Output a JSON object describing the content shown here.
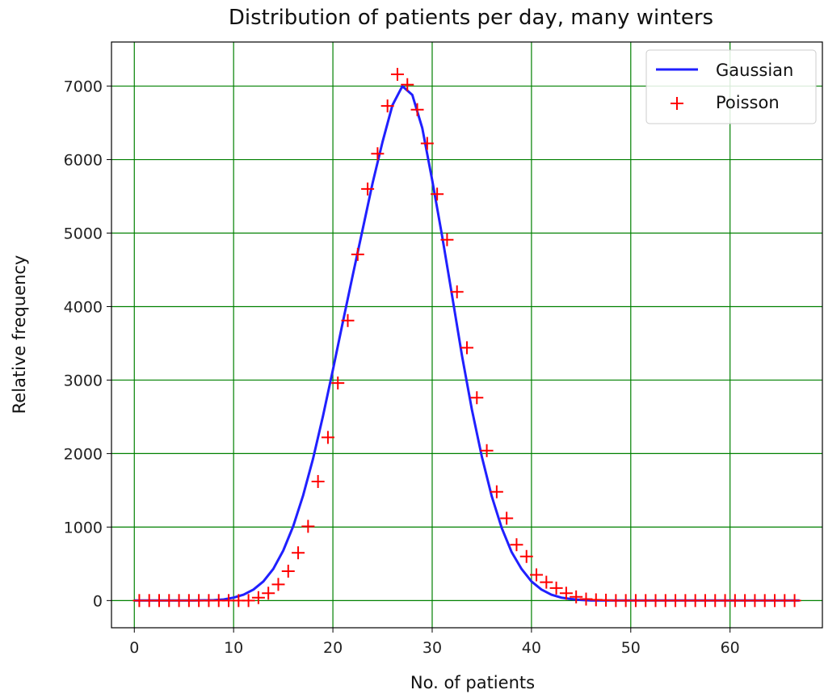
{
  "chart_data": {
    "type": "line",
    "title": "Distribution of patients per day, many winters",
    "xlabel": "No. of patients",
    "ylabel": "Relative frequency",
    "xlim": [
      -2.3,
      69.3
    ],
    "ylim": [
      -370,
      7600
    ],
    "xticks": [
      0,
      10,
      20,
      30,
      40,
      50,
      60
    ],
    "xtick_labels": [
      "0",
      "10",
      "20",
      "30",
      "40",
      "50",
      "60"
    ],
    "yticks": [
      0,
      1000,
      2000,
      3000,
      4000,
      5000,
      6000,
      7000
    ],
    "ytick_labels": [
      "0",
      "1000",
      "2000",
      "3000",
      "4000",
      "5000",
      "6000",
      "7000"
    ],
    "grid": true,
    "grid_color": "#008000",
    "legend_position": "upper right",
    "series": [
      {
        "name": "Gaussian",
        "kind": "line",
        "color": "#2020ff",
        "x": [
          0,
          2,
          4,
          6,
          8,
          9,
          10,
          11,
          12,
          13,
          14,
          15,
          16,
          17,
          18,
          19,
          20,
          21,
          22,
          23,
          24,
          25,
          26,
          27,
          28,
          29,
          30,
          31,
          32,
          33,
          34,
          35,
          36,
          37,
          38,
          39,
          40,
          41,
          42,
          43,
          44,
          45,
          46,
          48,
          50,
          55,
          60,
          67
        ],
        "y": [
          0,
          0,
          0,
          0,
          5,
          15,
          40,
          80,
          150,
          260,
          430,
          680,
          1010,
          1430,
          1930,
          2510,
          3140,
          3790,
          4430,
          5050,
          5680,
          6240,
          6740,
          7000,
          6880,
          6430,
          5720,
          4960,
          4150,
          3330,
          2600,
          1960,
          1420,
          990,
          660,
          430,
          260,
          150,
          80,
          40,
          20,
          8,
          0,
          0,
          0,
          0,
          0,
          0
        ]
      },
      {
        "name": "Poisson",
        "kind": "scatter",
        "marker": "+",
        "color": "#ff0000",
        "x": [
          0.5,
          1.5,
          2.5,
          3.5,
          4.5,
          5.5,
          6.5,
          7.5,
          8.5,
          9.5,
          10.5,
          11.5,
          12.5,
          13.5,
          14.5,
          15.5,
          16.5,
          17.5,
          18.5,
          19.5,
          20.5,
          21.5,
          22.5,
          23.5,
          24.5,
          25.5,
          26.5,
          27.5,
          28.5,
          29.5,
          30.5,
          31.5,
          32.5,
          33.5,
          34.5,
          35.5,
          36.5,
          37.5,
          38.5,
          39.5,
          40.5,
          41.5,
          42.5,
          43.5,
          44.5,
          45.5,
          46.5,
          47.5,
          48.5,
          49.5,
          50.5,
          51.5,
          52.5,
          53.5,
          54.5,
          55.5,
          56.5,
          57.5,
          58.5,
          59.5,
          60.5,
          61.5,
          62.5,
          63.5,
          64.5,
          65.5,
          66.5
        ],
        "y": [
          0,
          0,
          0,
          0,
          0,
          0,
          0,
          0,
          0,
          0,
          0,
          0,
          40,
          100,
          220,
          400,
          650,
          1010,
          1620,
          2220,
          2960,
          3810,
          4710,
          5600,
          6080,
          6730,
          7160,
          7020,
          6680,
          6220,
          5530,
          4910,
          4200,
          3440,
          2760,
          2040,
          1480,
          1120,
          760,
          600,
          350,
          250,
          170,
          100,
          50,
          20,
          10,
          5,
          0,
          0,
          0,
          0,
          0,
          0,
          0,
          0,
          0,
          0,
          0,
          0,
          0,
          0,
          0,
          0,
          0,
          0,
          0
        ]
      }
    ]
  }
}
